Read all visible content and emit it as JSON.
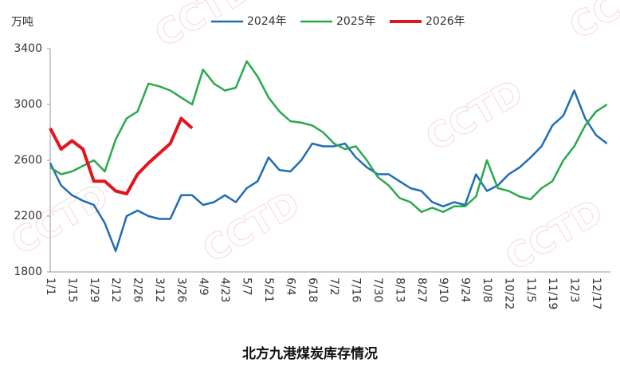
{
  "chart_data": {
    "type": "line",
    "title": "北方九港煤炭库存情况",
    "y_unit": "万吨",
    "watermark": "CCTD",
    "categories": [
      "1/1",
      null,
      "1/15",
      null,
      "1/29",
      null,
      "2/12",
      null,
      "2/26",
      null,
      "3/12",
      null,
      "3/26",
      null,
      "4/9",
      null,
      "4/23",
      null,
      "5/7",
      null,
      "5/21",
      null,
      "6/4",
      null,
      "6/18",
      null,
      "7/2",
      null,
      "7/16",
      null,
      "7/30",
      null,
      "8/13",
      null,
      "8/27",
      null,
      "9/10",
      null,
      "9/24",
      null,
      "10/8",
      null,
      "10/22",
      null,
      "11/5",
      null,
      "11/19",
      null,
      "12/3",
      null,
      "12/17",
      null
    ],
    "series": [
      {
        "name": "2024年",
        "color": "#1f6db5",
        "values": [
          2580,
          2420,
          2350,
          2310,
          2280,
          2150,
          1950,
          2200,
          2240,
          2200,
          2180,
          2180,
          2350,
          2350,
          2280,
          2300,
          2350,
          2300,
          2400,
          2450,
          2620,
          2530,
          2520,
          2600,
          2720,
          2700,
          2700,
          2720,
          2620,
          2550,
          2500,
          2500,
          2450,
          2400,
          2380,
          2300,
          2270,
          2300,
          2280,
          2500,
          2380,
          2420,
          2500,
          2550,
          2620,
          2700,
          2850,
          2920,
          3100,
          2900,
          2780,
          2720
        ]
      },
      {
        "name": "2025年",
        "color": "#2aa94c",
        "values": [
          2550,
          2500,
          2520,
          2560,
          2600,
          2520,
          2750,
          2900,
          2950,
          3150,
          3130,
          3100,
          3050,
          3000,
          3250,
          3150,
          3100,
          3120,
          3310,
          3200,
          3050,
          2950,
          2880,
          2870,
          2850,
          2800,
          2720,
          2680,
          2700,
          2600,
          2480,
          2420,
          2330,
          2300,
          2230,
          2260,
          2230,
          2270,
          2270,
          2340,
          2600,
          2400,
          2380,
          2340,
          2320,
          2400,
          2450,
          2600,
          2700,
          2850,
          2950,
          3000
        ]
      },
      {
        "name": "2026年",
        "color": "#e3141b",
        "values": [
          2830,
          2680,
          2740,
          2680,
          2450,
          2450,
          2380,
          2360,
          2500,
          2580,
          2650,
          2720,
          2900,
          2830,
          null,
          null,
          null,
          null,
          null,
          null,
          null,
          null,
          null,
          null,
          null,
          null,
          null,
          null,
          null,
          null,
          null,
          null,
          null,
          null,
          null,
          null,
          null,
          null,
          null,
          null,
          null,
          null,
          null,
          null,
          null,
          null,
          null,
          null,
          null,
          null,
          null,
          null
        ]
      }
    ],
    "ylim": [
      1800,
      3400
    ],
    "yticks": [
      1800,
      2200,
      2600,
      3000,
      3400
    ],
    "grid": false
  }
}
